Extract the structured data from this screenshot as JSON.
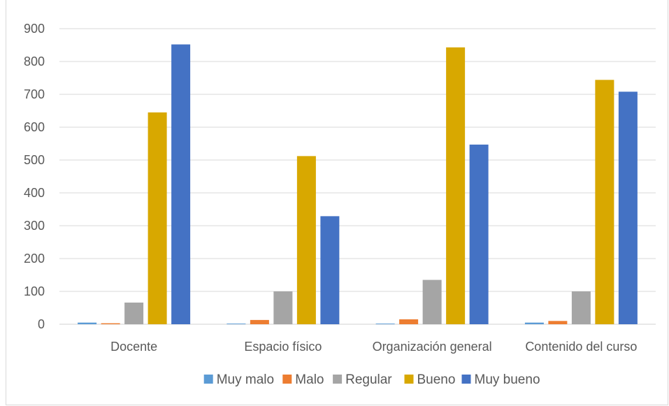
{
  "chart_data": {
    "type": "bar",
    "categories": [
      "Docente",
      "Espacio físico",
      "Organización general",
      "Contenido del curso"
    ],
    "series": [
      {
        "name": "Muy malo",
        "color": "#5b9bd5",
        "values": [
          5,
          2,
          2,
          5
        ]
      },
      {
        "name": "Malo",
        "color": "#ed7d31",
        "values": [
          3,
          13,
          15,
          10
        ]
      },
      {
        "name": "Regular",
        "color": "#a5a5a5",
        "values": [
          66,
          100,
          135,
          100
        ]
      },
      {
        "name": "Bueno",
        "color": "#d8a800",
        "values": [
          645,
          512,
          843,
          744
        ]
      },
      {
        "name": "Muy bueno",
        "color": "#4472c4",
        "values": [
          852,
          329,
          547,
          708
        ]
      }
    ],
    "ylim": [
      0,
      900
    ],
    "yticks": [
      "0",
      "100",
      "200",
      "300",
      "400",
      "500",
      "600",
      "700",
      "800",
      "900"
    ],
    "grid": true,
    "legend": "bottom"
  }
}
